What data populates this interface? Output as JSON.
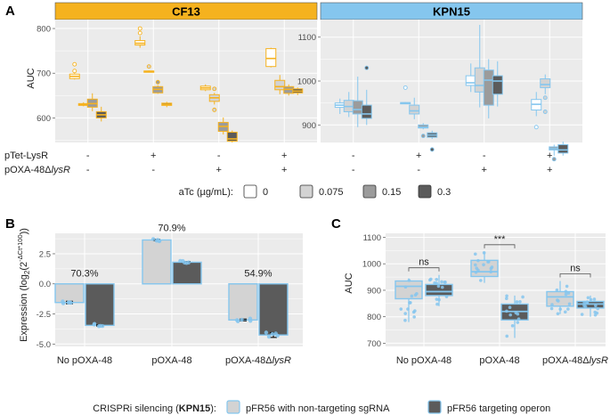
{
  "panels": {
    "A": "A",
    "B": "B",
    "C": "C"
  },
  "colors": {
    "cf13": "#f5b21f",
    "kpn15": "#85c6ee",
    "fill0": "#ffffff",
    "fill0075": "#d3d3d3",
    "fill015": "#9b9b9b",
    "fill03": "#5b5b5b",
    "light": "#d3d3d3",
    "dark": "#5b5b5b",
    "panel": "#ebebeb",
    "grid": "#ffffff"
  },
  "chart_data": [
    {
      "type": "box",
      "id": "A",
      "ylabel": "AUC",
      "row_labels": [
        "pTet-LysR",
        "pOXA-48ΔlysR"
      ],
      "row_label_parts": [
        [
          "pTet-LysR",
          ""
        ],
        [
          "pOXA-48Δ",
          "lysR"
        ]
      ],
      "conditions": [
        [
          "-",
          "-"
        ],
        [
          "+",
          "-"
        ],
        [
          "-",
          "+"
        ],
        [
          "+",
          "+"
        ]
      ],
      "legend": {
        "title": "aTc (µg/mL):",
        "labels": [
          "0",
          "0.075",
          "0.15",
          "0.3"
        ]
      },
      "facets": [
        {
          "name": "CF13",
          "ylim": [
            545,
            820
          ],
          "yticks": [
            600,
            700,
            800
          ],
          "groups": [
            [
              {
                "med": 693,
                "q1": 688,
                "q3": 698,
                "lo": 686,
                "hi": 700,
                "out": [
                  720,
                  705
                ]
              },
              {
                "med": 630,
                "q1": 628,
                "q3": 632,
                "lo": 626,
                "hi": 635,
                "out": []
              },
              {
                "med": 632,
                "q1": 624,
                "q3": 642,
                "lo": 615,
                "hi": 655,
                "out": []
              },
              {
                "med": 607,
                "q1": 600,
                "q3": 614,
                "lo": 592,
                "hi": 625,
                "out": []
              }
            ],
            [
              {
                "med": 767,
                "q1": 763,
                "q3": 773,
                "lo": 757,
                "hi": 783,
                "out": [
                  800,
                  790
                ]
              },
              {
                "med": 704,
                "q1": 703,
                "q3": 705,
                "lo": 702,
                "hi": 706,
                "out": [
                  715
                ]
              },
              {
                "med": 664,
                "q1": 656,
                "q3": 670,
                "lo": 654,
                "hi": 673,
                "out": [
                  680
                ]
              },
              {
                "med": 630,
                "q1": 628,
                "q3": 633,
                "lo": 624,
                "hi": 636,
                "out": []
              }
            ],
            [
              {
                "med": 667,
                "q1": 663,
                "q3": 671,
                "lo": 660,
                "hi": 675,
                "out": []
              },
              {
                "med": 645,
                "q1": 637,
                "q3": 652,
                "lo": 630,
                "hi": 656,
                "out": [
                  665,
                  618
                ]
              },
              {
                "med": 581,
                "q1": 570,
                "q3": 590,
                "lo": 563,
                "hi": 601,
                "out": []
              },
              {
                "med": 553,
                "q1": 548,
                "q3": 568,
                "lo": 545,
                "hi": 572,
                "out": []
              }
            ],
            [
              {
                "med": 733,
                "q1": 715,
                "q3": 755,
                "lo": 713,
                "hi": 757,
                "out": []
              },
              {
                "med": 670,
                "q1": 663,
                "q3": 684,
                "lo": 653,
                "hi": 696,
                "out": []
              },
              {
                "med": 664,
                "q1": 655,
                "q3": 670,
                "lo": 650,
                "hi": 675,
                "out": []
              },
              {
                "med": 660,
                "q1": 656,
                "q3": 665,
                "lo": 651,
                "hi": 668,
                "out": []
              }
            ]
          ]
        },
        {
          "name": "KPN15",
          "ylim": [
            860,
            1140
          ],
          "yticks": [
            900,
            1000,
            1100
          ],
          "groups": [
            [
              {
                "med": 945,
                "q1": 940,
                "q3": 950,
                "lo": 925,
                "hi": 960,
                "out": []
              },
              {
                "med": 942,
                "q1": 930,
                "q3": 956,
                "lo": 918,
                "hi": 975,
                "out": []
              },
              {
                "med": 935,
                "q1": 925,
                "q3": 955,
                "lo": 895,
                "hi": 1010,
                "out": []
              },
              {
                "med": 925,
                "q1": 915,
                "q3": 945,
                "lo": 900,
                "hi": 980,
                "out": [
                  1030
                ]
              }
            ],
            [
              {
                "med": 950,
                "q1": 949,
                "q3": 951,
                "lo": 948,
                "hi": 952,
                "out": [
                  985
                ]
              },
              {
                "med": 932,
                "q1": 925,
                "q3": 945,
                "lo": 913,
                "hi": 962,
                "out": []
              },
              {
                "med": 895,
                "q1": 893,
                "q3": 900,
                "lo": 890,
                "hi": 904,
                "out": [
                  875
                ]
              },
              {
                "med": 877,
                "q1": 872,
                "q3": 882,
                "lo": 868,
                "hi": 887,
                "out": [
                  844
                ]
              }
            ],
            [
              {
                "med": 996,
                "q1": 990,
                "q3": 1012,
                "lo": 975,
                "hi": 1040,
                "out": []
              },
              {
                "med": 990,
                "q1": 975,
                "q3": 1030,
                "lo": 940,
                "hi": 1128,
                "out": []
              },
              {
                "med": 1002,
                "q1": 945,
                "q3": 1025,
                "lo": 915,
                "hi": 1050,
                "out": []
              },
              {
                "med": 1000,
                "q1": 970,
                "q3": 1012,
                "lo": 942,
                "hi": 1045,
                "out": []
              }
            ],
            [
              {
                "med": 947,
                "q1": 934,
                "q3": 958,
                "lo": 920,
                "hi": 975,
                "out": [
                  895
                ]
              },
              {
                "med": 992,
                "q1": 985,
                "q3": 1005,
                "lo": 970,
                "hi": 1015,
                "out": [
                  962,
                  930
                ]
              },
              {
                "med": 846,
                "q1": 843,
                "q3": 850,
                "lo": 830,
                "hi": 855,
                "out": [
                  822
                ]
              },
              {
                "med": 843,
                "q1": 836,
                "q3": 855,
                "lo": 830,
                "hi": 862,
                "out": []
              }
            ]
          ]
        }
      ]
    },
    {
      "type": "bar",
      "id": "B",
      "ylabel": "Expression (log₂(2^{-ΔCt*100}))",
      "ylabel_main": "Expression (log",
      "ylabel_sub": "2",
      "ylabel_open": "(2",
      "ylabel_sup": "-ΔCt*100",
      "ylabel_close": "))",
      "ylim": [
        -5.2,
        4.2
      ],
      "yticks": [
        -5.0,
        -2.5,
        0.0,
        2.5
      ],
      "ytick_labels": [
        "-5.0",
        "-2.5",
        "0.0",
        "2.5"
      ],
      "categories": [
        "No pOXA-48",
        "pOXA-48",
        "pOXA-48ΔlysR"
      ],
      "category_parts": [
        [
          "No pOXA-48",
          ""
        ],
        [
          "pOXA-48",
          ""
        ],
        [
          "pOXA-48Δ",
          "lysR"
        ]
      ],
      "series": [
        {
          "name": "pFR56 with non-targeting sgRNA",
          "values": [
            -1.55,
            3.65,
            -3.0
          ],
          "err": [
            0.1,
            0.05,
            0.07
          ]
        },
        {
          "name": "pFR56 targeting operon",
          "values": [
            -3.45,
            1.8,
            -4.25
          ],
          "err": [
            0.05,
            0.05,
            0.2
          ]
        }
      ],
      "annotations": [
        "70.3%",
        "70.9%",
        "54.9%"
      ]
    },
    {
      "type": "box",
      "id": "C",
      "ylabel": "AUC",
      "ylim": [
        688,
        1115
      ],
      "yticks": [
        700,
        800,
        900,
        1000,
        1100
      ],
      "categories": [
        "No pOXA-48",
        "pOXA-48",
        "pOXA-48ΔlysR"
      ],
      "category_parts": [
        [
          "No pOXA-48",
          ""
        ],
        [
          "pOXA-48",
          ""
        ],
        [
          "pOXA-48Δ",
          "lysR"
        ]
      ],
      "significance": [
        "ns",
        "***",
        "ns"
      ],
      "groups": [
        [
          {
            "med": 915,
            "q1": 868,
            "q3": 935,
            "lo": 780,
            "hi": 945,
            "out": []
          },
          {
            "med": 895,
            "q1": 880,
            "q3": 922,
            "lo": 840,
            "hi": 958,
            "out": []
          }
        ],
        [
          {
            "med": 970,
            "q1": 952,
            "q3": 1013,
            "lo": 928,
            "hi": 1045,
            "out": []
          },
          {
            "med": 820,
            "q1": 788,
            "q3": 848,
            "lo": 720,
            "hi": 880,
            "out": []
          }
        ],
        [
          {
            "med": 875,
            "q1": 840,
            "q3": 895,
            "lo": 810,
            "hi": 935,
            "out": []
          },
          {
            "med": 848,
            "q1": 833,
            "q3": 858,
            "lo": 800,
            "hi": 880,
            "out": []
          }
        ]
      ]
    }
  ],
  "legend_bottom": {
    "title_prefix": "CRISPRi silencing (",
    "title_bold": "KPN15",
    "title_suffix": "):",
    "items": [
      "pFR56 with non-targeting sgRNA",
      "pFR56 targeting operon"
    ]
  }
}
